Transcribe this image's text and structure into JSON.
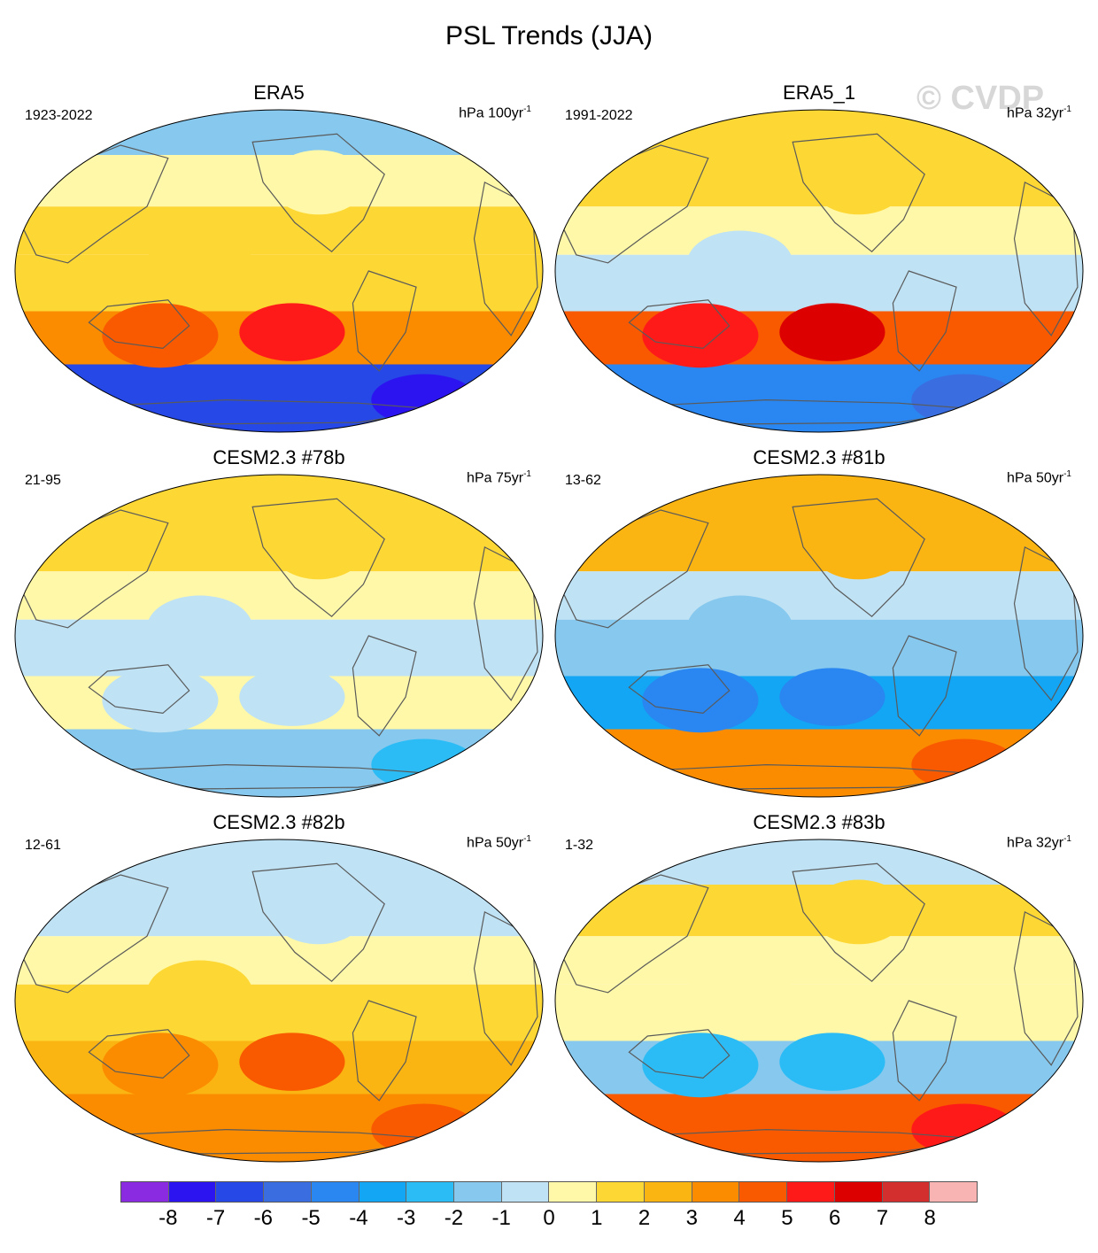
{
  "title": "PSL Trends (JJA)",
  "watermark": "© CVDP",
  "panels": [
    {
      "title": "ERA5",
      "period": "1923-2022",
      "units": "hPa 100yr",
      "exp": "-1",
      "pattern": {
        "arctic": -2,
        "n_mid": 0,
        "n_sub": 1,
        "tropics": 1,
        "s_mid": 3,
        "s_polar": -7
      }
    },
    {
      "title": "ERA5_1",
      "period": "1991-2022",
      "units": "hPa 32yr",
      "exp": "-1",
      "pattern": {
        "arctic": 1,
        "n_mid": 1,
        "n_sub": 0,
        "tropics": -1,
        "s_mid": 4,
        "s_polar": -5
      }
    },
    {
      "title": "CESM2.3 #78b",
      "period": "21-95",
      "units": "hPa 75yr",
      "exp": "-1",
      "pattern": {
        "arctic": 1,
        "n_mid": 1,
        "n_sub": 0,
        "tropics": -1,
        "s_mid": 0,
        "s_polar": -2
      }
    },
    {
      "title": "CESM2.3 #81b",
      "period": "13-62",
      "units": "hPa 50yr",
      "exp": "-1",
      "pattern": {
        "arctic": 2,
        "n_mid": 2,
        "n_sub": -1,
        "tropics": -2,
        "s_mid": -4,
        "s_polar": 3
      }
    },
    {
      "title": "CESM2.3 #82b",
      "period": "12-61",
      "units": "hPa 50yr",
      "exp": "-1",
      "pattern": {
        "arctic": -1,
        "n_mid": -1,
        "n_sub": 0,
        "tropics": 1,
        "s_mid": 2,
        "s_polar": 3
      }
    },
    {
      "title": "CESM2.3 #83b",
      "period": "1-32",
      "units": "hPa 32yr",
      "exp": "-1",
      "pattern": {
        "arctic": -1,
        "n_mid": 1,
        "n_sub": 0,
        "tropics": 0,
        "s_mid": -2,
        "s_polar": 4
      }
    }
  ],
  "colorbar": {
    "labels": [
      "-8",
      "-7",
      "-6",
      "-5",
      "-4",
      "-3",
      "-2",
      "-1",
      "0",
      "1",
      "2",
      "3",
      "4",
      "5",
      "6",
      "7",
      "8"
    ],
    "colors": [
      "#8a2be2",
      "#2c14f0",
      "#2648e6",
      "#3a6ee0",
      "#2a86f0",
      "#12a6f4",
      "#2cbcf5",
      "#86c8ee",
      "#bfe2f4",
      "#fff8a8",
      "#fdd835",
      "#fbb512",
      "#fb8c00",
      "#f95a00",
      "#ff1a1a",
      "#dd0000",
      "#d32f2f",
      "#f8b3b3"
    ]
  }
}
